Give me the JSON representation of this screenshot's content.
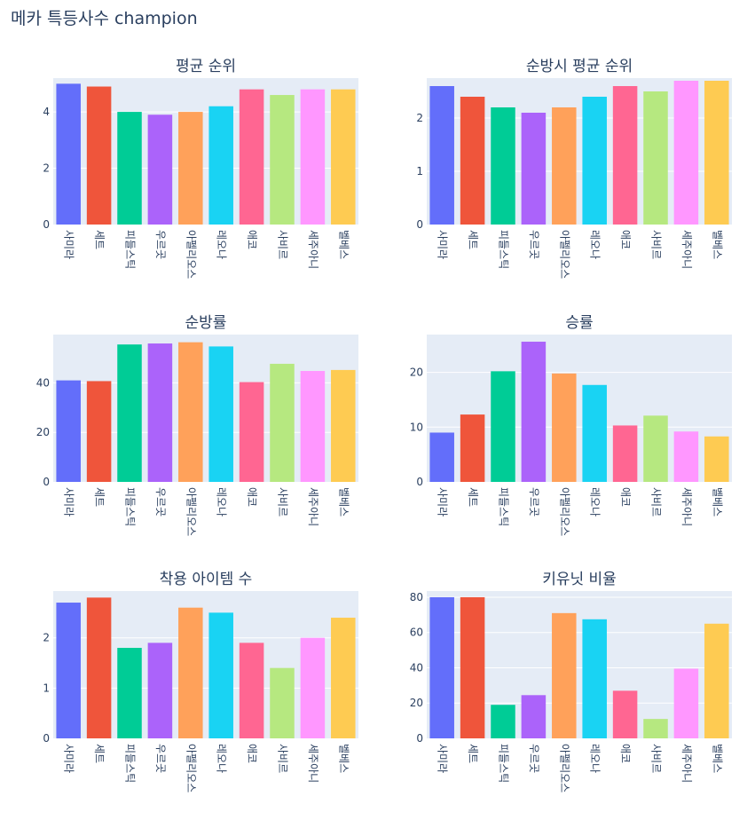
{
  "title": "메카 특등사수 champion",
  "chart_data": [
    {
      "type": "bar",
      "title": "평균 순위",
      "categories": [
        "사미라",
        "세트",
        "피들스틱",
        "우르곳",
        "아펠리오스",
        "레오나",
        "애코",
        "사비르",
        "세주아니",
        "벨베스"
      ],
      "values": [
        5.0,
        4.9,
        4.0,
        3.9,
        4.0,
        4.2,
        4.8,
        4.6,
        4.8,
        4.8
      ],
      "ylim": [
        0,
        5.2
      ],
      "yticks": [
        0,
        2,
        4
      ]
    },
    {
      "type": "bar",
      "title": "순방시 평균 순위",
      "categories": [
        "사미라",
        "세트",
        "피들스틱",
        "우르곳",
        "아펠리오스",
        "레오나",
        "애코",
        "사비르",
        "세주아니",
        "벨베스"
      ],
      "values": [
        2.6,
        2.4,
        2.2,
        2.1,
        2.2,
        2.4,
        2.6,
        2.5,
        2.7,
        2.7
      ],
      "ylim": [
        0,
        2.75
      ],
      "yticks": [
        0,
        1,
        2
      ]
    },
    {
      "type": "bar",
      "title": "순방률",
      "categories": [
        "사미라",
        "세트",
        "피들스틱",
        "우르곳",
        "아펠리오스",
        "레오나",
        "애코",
        "사비르",
        "세주아니",
        "벨베스"
      ],
      "values": [
        41,
        40.7,
        55.5,
        55.9,
        56.4,
        54.7,
        40.3,
        47.7,
        44.8,
        45.2
      ],
      "ylim": [
        0,
        59.5
      ],
      "yticks": [
        0,
        20,
        40
      ]
    },
    {
      "type": "bar",
      "title": "승률",
      "categories": [
        "사미라",
        "세트",
        "피들스틱",
        "우르곳",
        "아펠리오스",
        "레오나",
        "애코",
        "사비르",
        "세주아니",
        "벨베스"
      ],
      "values": [
        9,
        12.3,
        20.2,
        25.6,
        19.8,
        17.7,
        10.3,
        12.1,
        9.2,
        8.3
      ],
      "ylim": [
        0,
        26.9
      ],
      "yticks": [
        0,
        10,
        20
      ]
    },
    {
      "type": "bar",
      "title": "착용 아이템 수",
      "categories": [
        "사미라",
        "세트",
        "피들스틱",
        "우르곳",
        "아펠리오스",
        "레오나",
        "애코",
        "사비르",
        "세주아니",
        "벨베스"
      ],
      "values": [
        2.7,
        2.8,
        1.8,
        1.9,
        2.6,
        2.5,
        1.9,
        1.4,
        2.0,
        2.4
      ],
      "ylim": [
        0,
        2.93
      ],
      "yticks": [
        0,
        1,
        2
      ]
    },
    {
      "type": "bar",
      "title": "키유닛 비율",
      "categories": [
        "사미라",
        "세트",
        "피들스틱",
        "우르곳",
        "아펠리오스",
        "레오나",
        "애코",
        "사비르",
        "세주아니",
        "벨베스"
      ],
      "values": [
        80,
        80,
        19,
        24.5,
        71,
        67.5,
        27,
        11,
        39.5,
        65
      ],
      "ylim": [
        0,
        83.5
      ],
      "yticks": [
        0,
        20,
        40,
        60,
        80
      ]
    }
  ],
  "colors": [
    "#636efa",
    "#EF553B",
    "#00cc96",
    "#ab63fa",
    "#FFA15A",
    "#19d3f3",
    "#FF6692",
    "#B6E880",
    "#FF97FF",
    "#FECB52"
  ],
  "plot_background": "#e5ecf6"
}
